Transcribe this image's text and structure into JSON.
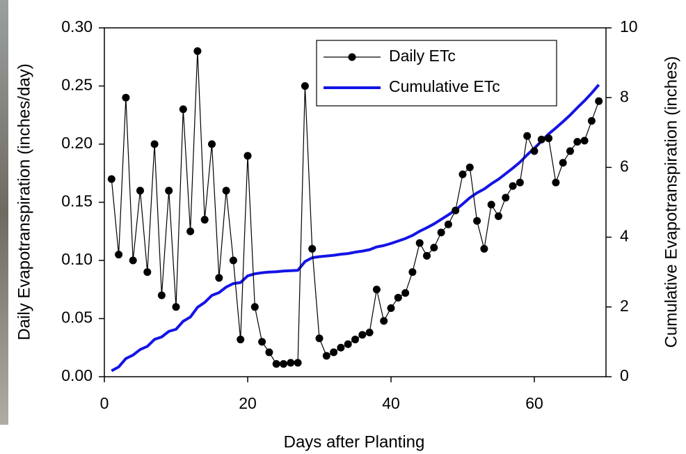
{
  "chart_data": {
    "type": "line",
    "x_label": "Days after Planting",
    "y_label": "Daily Evapotranspiration (inches/day)",
    "y2_label": "Cumulative Evapotranspiration (inches)",
    "x": [
      1,
      2,
      3,
      4,
      5,
      6,
      7,
      8,
      9,
      10,
      11,
      12,
      13,
      14,
      15,
      16,
      17,
      18,
      19,
      20,
      21,
      22,
      23,
      24,
      25,
      26,
      27,
      28,
      29,
      30,
      31,
      32,
      33,
      34,
      35,
      36,
      37,
      38,
      39,
      40,
      41,
      42,
      43,
      44,
      45,
      46,
      47,
      48,
      49,
      50,
      51,
      52,
      53,
      54,
      55,
      56,
      57,
      58,
      59,
      60,
      61,
      62,
      63,
      64,
      65,
      66,
      67,
      68,
      69
    ],
    "series": [
      {
        "name": "Daily ETc",
        "color": "#000000",
        "axis": "y",
        "marker": true,
        "values": [
          0.17,
          0.105,
          0.24,
          0.1,
          0.16,
          0.09,
          0.2,
          0.07,
          0.16,
          0.06,
          0.23,
          0.125,
          0.28,
          0.135,
          0.2,
          0.085,
          0.16,
          0.1,
          0.032,
          0.19,
          0.06,
          0.03,
          0.021,
          0.011,
          0.011,
          0.012,
          0.012,
          0.25,
          0.11,
          0.033,
          0.018,
          0.021,
          0.025,
          0.028,
          0.032,
          0.036,
          0.038,
          0.075,
          0.048,
          0.059,
          0.068,
          0.072,
          0.09,
          0.115,
          0.104,
          0.111,
          0.124,
          0.131,
          0.143,
          0.174,
          0.18,
          0.134,
          0.11,
          0.148,
          0.138,
          0.154,
          0.164,
          0.167,
          0.207,
          0.194,
          0.204,
          0.205,
          0.167,
          0.184,
          0.194,
          0.202,
          0.203,
          0.22,
          0.237
        ]
      },
      {
        "name": "Cumulative ETc",
        "color": "#1414e6",
        "axis": "y2",
        "marker": false,
        "values": [
          0.17,
          0.28,
          0.52,
          0.62,
          0.78,
          0.87,
          1.07,
          1.14,
          1.3,
          1.36,
          1.59,
          1.71,
          1.99,
          2.13,
          2.33,
          2.41,
          2.57,
          2.67,
          2.7,
          2.89,
          2.95,
          2.98,
          3.0,
          3.01,
          3.03,
          3.04,
          3.05,
          3.3,
          3.41,
          3.44,
          3.46,
          3.48,
          3.51,
          3.53,
          3.57,
          3.6,
          3.64,
          3.72,
          3.76,
          3.82,
          3.89,
          3.96,
          4.05,
          4.17,
          4.27,
          4.38,
          4.51,
          4.64,
          4.78,
          4.95,
          5.13,
          5.27,
          5.38,
          5.53,
          5.66,
          5.82,
          5.98,
          6.15,
          6.36,
          6.55,
          6.75,
          6.96,
          7.13,
          7.31,
          7.5,
          7.71,
          7.91,
          8.13,
          8.37
        ]
      }
    ],
    "xlim": [
      0,
      70
    ],
    "xticks": [
      0,
      20,
      40,
      60
    ],
    "ylim": [
      0,
      0.3
    ],
    "yticks": [
      {
        "value": 0,
        "label": "0.00"
      },
      {
        "value": 0.05,
        "label": "0.05"
      },
      {
        "value": 0.1,
        "label": "0.10"
      },
      {
        "value": 0.15,
        "label": "0.15"
      },
      {
        "value": 0.2,
        "label": "0.20"
      },
      {
        "value": 0.25,
        "label": "0.25"
      },
      {
        "value": 0.3,
        "label": "0.30"
      }
    ],
    "y2lim": [
      0,
      10
    ],
    "y2ticks": [
      0,
      2,
      4,
      6,
      8,
      10
    ],
    "legend": "top-right"
  }
}
